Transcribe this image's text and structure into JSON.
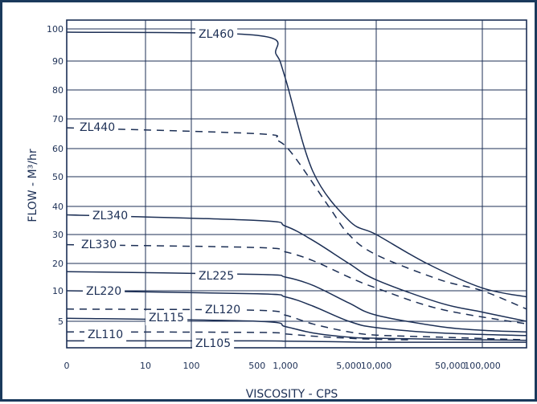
{
  "chart_data": {
    "type": "line",
    "title": "",
    "xlabel": "VISCOSITY - CPS",
    "ylabel": "FLOW - M³/hr",
    "grid": true,
    "colors": {
      "line": "#1c2f55",
      "grid": "#1c2f55",
      "border": "#1a3a5c"
    },
    "x_tick_labels": [
      {
        "label": "0",
        "x": 0
      },
      {
        "label": "10",
        "x": 10
      },
      {
        "label": "100",
        "x": 100
      },
      {
        "label": "500",
        "x": 500
      },
      {
        "label": "1,000",
        "x": 1000
      },
      {
        "label": "5,000",
        "x": 5000
      },
      {
        "label": "10,000",
        "x": 10000
      },
      {
        "label": "50,000",
        "x": 50000
      },
      {
        "label": "100,000",
        "x": 100000
      }
    ],
    "x_grid": [
      10,
      100,
      1000,
      10000,
      100000
    ],
    "y_tick_labels": [
      "5",
      "10",
      "20",
      "30",
      "40",
      "50",
      "60",
      "70",
      "80",
      "90",
      "100"
    ],
    "series": [
      {
        "name": "ZL460",
        "style": "solid",
        "points": [
          [
            0,
            99
          ],
          [
            500,
            98
          ],
          [
            800,
            92
          ],
          [
            1000,
            84
          ],
          [
            2000,
            52
          ],
          [
            5000,
            35
          ],
          [
            10000,
            30
          ],
          [
            30000,
            20
          ],
          [
            100000,
            11
          ],
          [
            300000,
            9
          ]
        ]
      },
      {
        "name": "ZL440",
        "style": "dashed",
        "points": [
          [
            0,
            67
          ],
          [
            500,
            65
          ],
          [
            800,
            63
          ],
          [
            1200,
            58
          ],
          [
            3000,
            40
          ],
          [
            5000,
            30
          ],
          [
            10000,
            23
          ],
          [
            40000,
            14
          ],
          [
            100000,
            10
          ],
          [
            300000,
            7
          ]
        ]
      },
      {
        "name": "ZL340",
        "style": "solid",
        "points": [
          [
            0,
            37
          ],
          [
            500,
            35
          ],
          [
            1000,
            33
          ],
          [
            2000,
            28
          ],
          [
            5000,
            20
          ],
          [
            10000,
            14
          ],
          [
            40000,
            8
          ],
          [
            100000,
            6.5
          ],
          [
            300000,
            5
          ]
        ]
      },
      {
        "name": "ZL330",
        "style": "dashed",
        "points": [
          [
            0,
            26.5
          ],
          [
            500,
            25.5
          ],
          [
            1000,
            24
          ],
          [
            2000,
            21
          ],
          [
            5000,
            15
          ],
          [
            10000,
            11
          ],
          [
            40000,
            7
          ],
          [
            300000,
            4.5
          ]
        ]
      },
      {
        "name": "ZL225",
        "style": "solid",
        "points": [
          [
            0,
            17
          ],
          [
            500,
            16
          ],
          [
            1000,
            15
          ],
          [
            2000,
            12
          ],
          [
            5000,
            8
          ],
          [
            10000,
            6
          ],
          [
            40000,
            4
          ],
          [
            100000,
            3.3
          ],
          [
            300000,
            3
          ]
        ]
      },
      {
        "name": "ZL220",
        "style": "solid",
        "points": [
          [
            0,
            10
          ],
          [
            500,
            9.5
          ],
          [
            1000,
            9
          ],
          [
            2000,
            7.5
          ],
          [
            5000,
            5
          ],
          [
            10000,
            3.8
          ],
          [
            40000,
            2.8
          ],
          [
            300000,
            2.3
          ]
        ]
      },
      {
        "name": "ZL120",
        "style": "dashed",
        "points": [
          [
            0,
            7
          ],
          [
            500,
            6.8
          ],
          [
            1000,
            6
          ],
          [
            2000,
            4.5
          ],
          [
            5000,
            3
          ],
          [
            10000,
            2.4
          ],
          [
            40000,
            2
          ],
          [
            300000,
            1.5
          ]
        ]
      },
      {
        "name": "ZL115",
        "style": "solid",
        "points": [
          [
            0,
            5.5
          ],
          [
            500,
            5
          ],
          [
            1000,
            4
          ],
          [
            2000,
            2.8
          ],
          [
            5000,
            2
          ],
          [
            10000,
            1.8
          ],
          [
            100000,
            1.5
          ],
          [
            300000,
            1.4
          ]
        ]
      },
      {
        "name": "ZL110",
        "style": "dashed",
        "points": [
          [
            0,
            3
          ],
          [
            500,
            2.9
          ],
          [
            1000,
            2.6
          ],
          [
            2000,
            2.2
          ],
          [
            5000,
            1.8
          ],
          [
            10000,
            1.6
          ],
          [
            20000,
            1.5
          ]
        ]
      },
      {
        "name": "ZL105",
        "style": "solid",
        "points": [
          [
            0,
            1.3
          ],
          [
            500,
            1.3
          ],
          [
            1000,
            1.25
          ],
          [
            2000,
            1.2
          ],
          [
            5000,
            1.1
          ],
          [
            10000,
            1.05
          ],
          [
            300000,
            1.05
          ]
        ]
      }
    ]
  }
}
